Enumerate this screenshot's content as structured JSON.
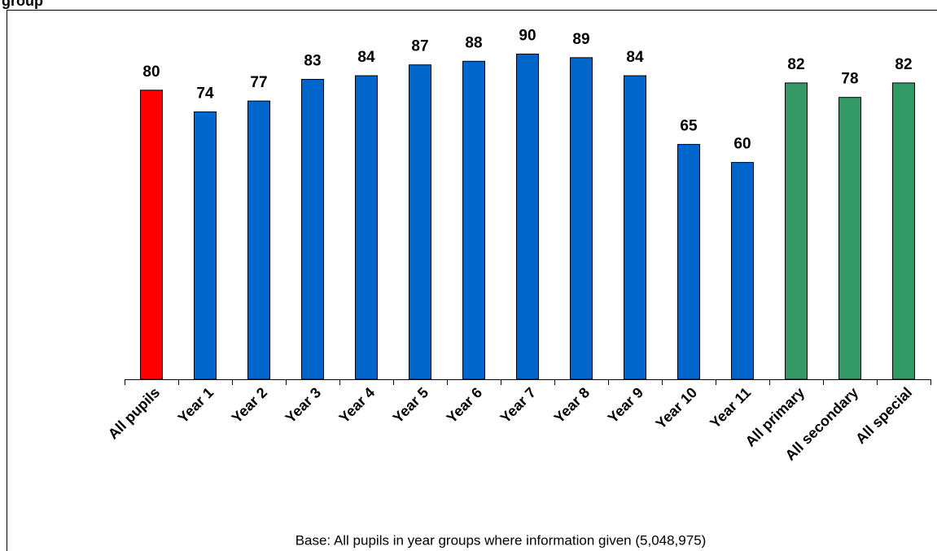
{
  "chart_data": {
    "type": "bar",
    "title": "group",
    "categories": [
      "All pupils",
      "Year 1",
      "Year 2",
      "Year 3",
      "Year 4",
      "Year 5",
      "Year 6",
      "Year 7",
      "Year 8",
      "Year 9",
      "Year 10",
      "Year 11",
      "All primary",
      "All secondary",
      "All special"
    ],
    "values": [
      80,
      74,
      77,
      83,
      84,
      87,
      88,
      90,
      89,
      84,
      65,
      60,
      82,
      78,
      82
    ],
    "colors": [
      "#ff0000",
      "#0066cc",
      "#0066cc",
      "#0066cc",
      "#0066cc",
      "#0066cc",
      "#0066cc",
      "#0066cc",
      "#0066cc",
      "#0066cc",
      "#0066cc",
      "#0066cc",
      "#339966",
      "#339966",
      "#339966"
    ],
    "ylim": [
      0,
      100
    ],
    "note": "Base: All pupils in year groups where information given (5,048,975)"
  }
}
